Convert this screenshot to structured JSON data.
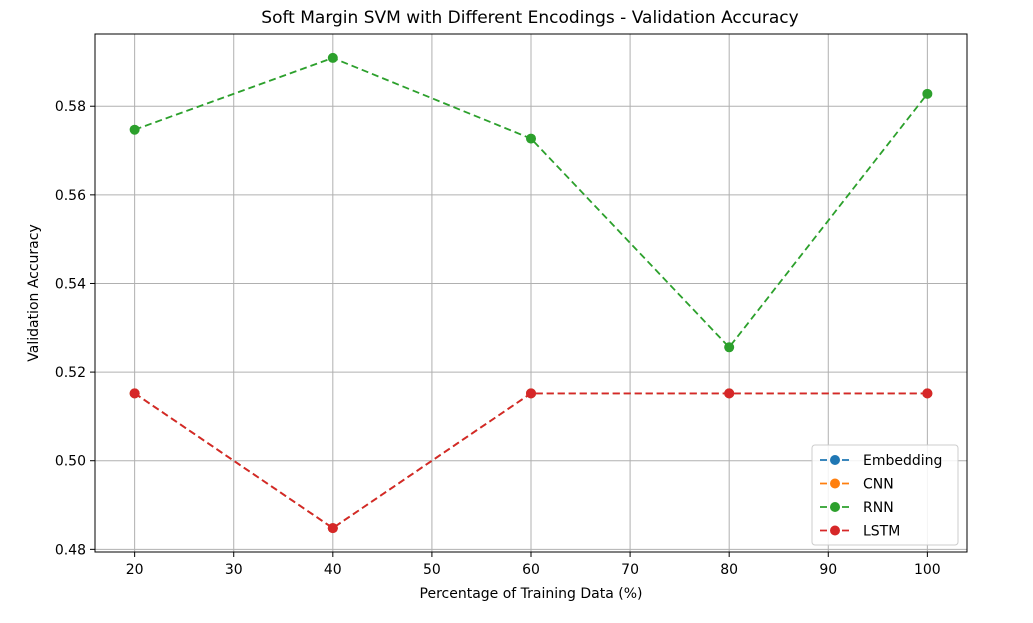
{
  "chart_data": {
    "type": "line",
    "title": "Soft Margin SVM with Different Encodings - Validation Accuracy",
    "xlabel": "Percentage of Training Data (%)",
    "ylabel": "Validation Accuracy",
    "x": [
      20,
      40,
      60,
      80,
      100
    ],
    "xlim": [
      16,
      104
    ],
    "ylim": [
      0.4794,
      0.5963
    ],
    "xticks": [
      20,
      30,
      40,
      50,
      60,
      70,
      80,
      90,
      100
    ],
    "xtick_labels": [
      "20",
      "30",
      "40",
      "50",
      "60",
      "70",
      "80",
      "90",
      "100"
    ],
    "yticks": [
      0.48,
      0.5,
      0.52,
      0.54,
      0.56,
      0.58
    ],
    "ytick_labels": [
      "0.48",
      "0.50",
      "0.52",
      "0.54",
      "0.56",
      "0.58"
    ],
    "grid": true,
    "legend_position": "lower right",
    "line_style": "dashed",
    "marker": "circle",
    "series": [
      {
        "name": "Embedding",
        "color": "#1f77b4",
        "values": [
          0.5152,
          0.4848,
          0.5152,
          0.5152,
          0.5152
        ]
      },
      {
        "name": "CNN",
        "color": "#ff7f0e",
        "values": [
          0.5152,
          0.4848,
          0.5152,
          0.5152,
          0.5152
        ]
      },
      {
        "name": "RNN",
        "color": "#2ca02c",
        "values": [
          0.5747,
          0.5909,
          0.5727,
          0.5256,
          0.5828
        ]
      },
      {
        "name": "LSTM",
        "color": "#d62728",
        "values": [
          0.5152,
          0.4848,
          0.5152,
          0.5152,
          0.5152
        ]
      }
    ]
  }
}
